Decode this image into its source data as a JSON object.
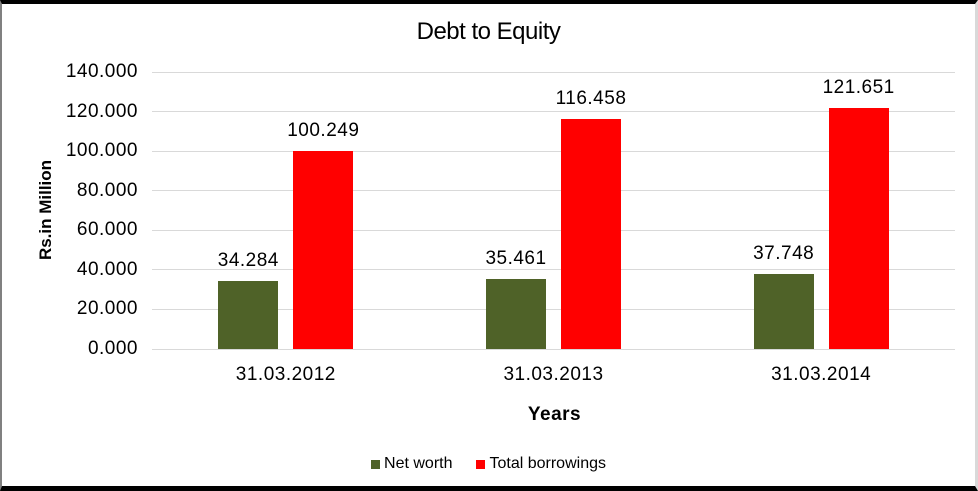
{
  "chart_data": {
    "type": "bar",
    "title": "Debt to Equity",
    "xlabel": "Years",
    "ylabel": "Rs.in Million",
    "categories": [
      "31.03.2012",
      "31.03.2013",
      "31.03.2014"
    ],
    "series": [
      {
        "name": "Net worth",
        "color": "#4F6228",
        "values": [
          34.284,
          35.461,
          37.748
        ],
        "value_labels": [
          "34.284",
          "35.461",
          "37.748"
        ]
      },
      {
        "name": "Total borrowings",
        "color": "#FF0000",
        "values": [
          100.249,
          116.458,
          121.651
        ],
        "value_labels": [
          "100.249",
          "116.458",
          "121.651"
        ]
      }
    ],
    "ylim": [
      0,
      140
    ],
    "ytick_values": [
      0,
      20,
      40,
      60,
      80,
      100,
      120,
      140
    ],
    "ytick_labels": [
      "0.000",
      "20.000",
      "40.000",
      "60.000",
      "80.000",
      "100.000",
      "120.000",
      "140.000"
    ],
    "grid": true,
    "gridline_color": "#D9D9D9",
    "legend_position": "bottom"
  }
}
